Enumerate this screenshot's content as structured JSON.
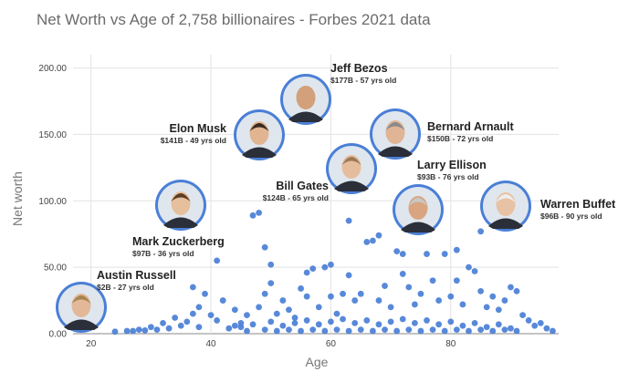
{
  "chart_data": {
    "type": "scatter",
    "title": "Net Worth vs Age of 2,758 billionaires - Forbes 2021 data",
    "xlabel": "Age",
    "ylabel": "Net worth",
    "xlim": [
      17,
      98
    ],
    "ylim": [
      0,
      210
    ],
    "xticks": [
      20,
      40,
      60,
      80
    ],
    "yticks": [
      0,
      50,
      100,
      150,
      200
    ],
    "ytick_labels": [
      "0.00",
      "50.00",
      "100.00",
      "150.00",
      "200.00"
    ],
    "grid": true,
    "color": "#4a7fd6",
    "points": [
      {
        "x": 24,
        "y": 1.5
      },
      {
        "x": 26,
        "y": 2
      },
      {
        "x": 27,
        "y": 2
      },
      {
        "x": 28,
        "y": 3
      },
      {
        "x": 29,
        "y": 2.5
      },
      {
        "x": 30,
        "y": 5
      },
      {
        "x": 31,
        "y": 3
      },
      {
        "x": 32,
        "y": 8
      },
      {
        "x": 33,
        "y": 4
      },
      {
        "x": 34,
        "y": 12
      },
      {
        "x": 35,
        "y": 6
      },
      {
        "x": 36,
        "y": 9
      },
      {
        "x": 37,
        "y": 35
      },
      {
        "x": 37,
        "y": 15
      },
      {
        "x": 38,
        "y": 20
      },
      {
        "x": 38,
        "y": 5
      },
      {
        "x": 39,
        "y": 30
      },
      {
        "x": 40,
        "y": 14
      },
      {
        "x": 41,
        "y": 55
      },
      {
        "x": 41,
        "y": 10
      },
      {
        "x": 42,
        "y": 25
      },
      {
        "x": 43,
        "y": 4
      },
      {
        "x": 44,
        "y": 18
      },
      {
        "x": 44,
        "y": 6
      },
      {
        "x": 45,
        "y": 8
      },
      {
        "x": 46,
        "y": 14
      },
      {
        "x": 47,
        "y": 89
      },
      {
        "x": 48,
        "y": 91
      },
      {
        "x": 48,
        "y": 20
      },
      {
        "x": 49,
        "y": 65
      },
      {
        "x": 49,
        "y": 30
      },
      {
        "x": 50,
        "y": 52
      },
      {
        "x": 50,
        "y": 38
      },
      {
        "x": 51,
        "y": 15
      },
      {
        "x": 52,
        "y": 25
      },
      {
        "x": 53,
        "y": 18
      },
      {
        "x": 54,
        "y": 12
      },
      {
        "x": 55,
        "y": 34
      },
      {
        "x": 56,
        "y": 46
      },
      {
        "x": 56,
        "y": 28
      },
      {
        "x": 57,
        "y": 49
      },
      {
        "x": 58,
        "y": 20
      },
      {
        "x": 59,
        "y": 50
      },
      {
        "x": 60,
        "y": 52
      },
      {
        "x": 60,
        "y": 28
      },
      {
        "x": 61,
        "y": 15
      },
      {
        "x": 62,
        "y": 30
      },
      {
        "x": 63,
        "y": 44
      },
      {
        "x": 63,
        "y": 85
      },
      {
        "x": 64,
        "y": 25
      },
      {
        "x": 65,
        "y": 30
      },
      {
        "x": 66,
        "y": 69
      },
      {
        "x": 67,
        "y": 70
      },
      {
        "x": 68,
        "y": 74
      },
      {
        "x": 68,
        "y": 25
      },
      {
        "x": 69,
        "y": 36
      },
      {
        "x": 70,
        "y": 20
      },
      {
        "x": 71,
        "y": 62
      },
      {
        "x": 72,
        "y": 60
      },
      {
        "x": 72,
        "y": 45
      },
      {
        "x": 73,
        "y": 35
      },
      {
        "x": 74,
        "y": 22
      },
      {
        "x": 75,
        "y": 30
      },
      {
        "x": 76,
        "y": 60
      },
      {
        "x": 77,
        "y": 40
      },
      {
        "x": 78,
        "y": 25
      },
      {
        "x": 79,
        "y": 60
      },
      {
        "x": 80,
        "y": 28
      },
      {
        "x": 81,
        "y": 63
      },
      {
        "x": 81,
        "y": 40
      },
      {
        "x": 82,
        "y": 22
      },
      {
        "x": 83,
        "y": 50
      },
      {
        "x": 84,
        "y": 47
      },
      {
        "x": 85,
        "y": 77
      },
      {
        "x": 85,
        "y": 32
      },
      {
        "x": 86,
        "y": 20
      },
      {
        "x": 87,
        "y": 28
      },
      {
        "x": 88,
        "y": 18
      },
      {
        "x": 89,
        "y": 25
      },
      {
        "x": 90,
        "y": 35
      },
      {
        "x": 91,
        "y": 32
      },
      {
        "x": 92,
        "y": 14
      },
      {
        "x": 93,
        "y": 10
      },
      {
        "x": 94,
        "y": 6
      },
      {
        "x": 95,
        "y": 8
      },
      {
        "x": 96,
        "y": 4
      },
      {
        "x": 97,
        "y": 2
      },
      {
        "x": 45,
        "y": 5
      },
      {
        "x": 47,
        "y": 7
      },
      {
        "x": 50,
        "y": 9
      },
      {
        "x": 52,
        "y": 6
      },
      {
        "x": 54,
        "y": 8
      },
      {
        "x": 56,
        "y": 10
      },
      {
        "x": 58,
        "y": 7
      },
      {
        "x": 60,
        "y": 9
      },
      {
        "x": 62,
        "y": 11
      },
      {
        "x": 64,
        "y": 8
      },
      {
        "x": 66,
        "y": 10
      },
      {
        "x": 68,
        "y": 7
      },
      {
        "x": 70,
        "y": 9
      },
      {
        "x": 72,
        "y": 11
      },
      {
        "x": 74,
        "y": 8
      },
      {
        "x": 76,
        "y": 10
      },
      {
        "x": 78,
        "y": 7
      },
      {
        "x": 80,
        "y": 9
      },
      {
        "x": 82,
        "y": 6
      },
      {
        "x": 84,
        "y": 8
      },
      {
        "x": 86,
        "y": 5
      },
      {
        "x": 88,
        "y": 7
      },
      {
        "x": 90,
        "y": 4
      },
      {
        "x": 46,
        "y": 2
      },
      {
        "x": 49,
        "y": 3
      },
      {
        "x": 51,
        "y": 2
      },
      {
        "x": 53,
        "y": 3
      },
      {
        "x": 55,
        "y": 2
      },
      {
        "x": 57,
        "y": 3
      },
      {
        "x": 59,
        "y": 2
      },
      {
        "x": 61,
        "y": 3
      },
      {
        "x": 63,
        "y": 2
      },
      {
        "x": 65,
        "y": 3
      },
      {
        "x": 67,
        "y": 2
      },
      {
        "x": 69,
        "y": 3
      },
      {
        "x": 71,
        "y": 2
      },
      {
        "x": 73,
        "y": 3
      },
      {
        "x": 75,
        "y": 2
      },
      {
        "x": 77,
        "y": 3
      },
      {
        "x": 79,
        "y": 2
      },
      {
        "x": 81,
        "y": 3
      },
      {
        "x": 83,
        "y": 2
      },
      {
        "x": 85,
        "y": 3
      },
      {
        "x": 87,
        "y": 2
      },
      {
        "x": 89,
        "y": 3
      },
      {
        "x": 91,
        "y": 2
      }
    ],
    "annotations": [
      {
        "name": "Jeff Bezos",
        "detail": "$177B - 57 yrs old",
        "x": 57,
        "y": 177
      },
      {
        "name": "Elon Musk",
        "detail": "$141B - 49 yrs old",
        "x": 49,
        "y": 141
      },
      {
        "name": "Bernard Arnault",
        "detail": "$150B - 72 yrs old",
        "x": 72,
        "y": 150
      },
      {
        "name": "Bill Gates",
        "detail": "$124B - 65 yrs old",
        "x": 65,
        "y": 124
      },
      {
        "name": "Larry Ellison",
        "detail": "$93B - 76 yrs old",
        "x": 76,
        "y": 93
      },
      {
        "name": "Warren Buffet",
        "detail": "$96B - 90 yrs old",
        "x": 90,
        "y": 96
      },
      {
        "name": "Mark Zuckerberg",
        "detail": "$97B - 36 yrs old",
        "x": 36,
        "y": 97
      },
      {
        "name": "Austin Russell",
        "detail": "$2B - 27 yrs old",
        "x": 27,
        "y": 2
      }
    ]
  }
}
